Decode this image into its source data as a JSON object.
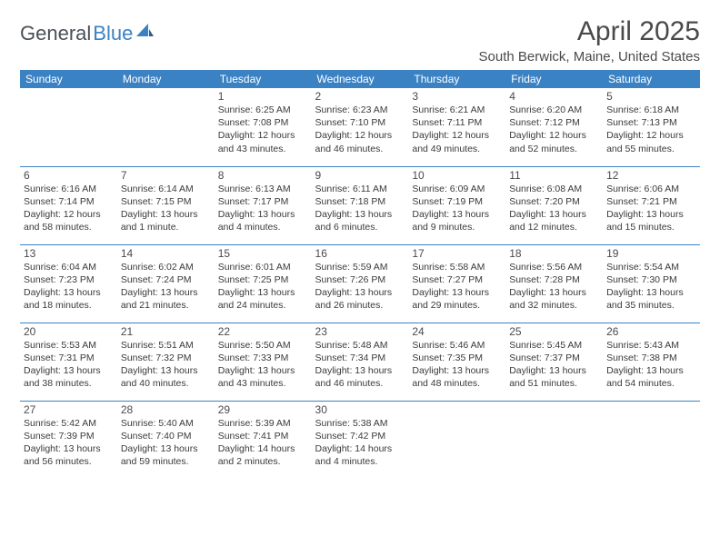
{
  "logo": {
    "text_general": "General",
    "text_blue": "Blue",
    "icon_color": "#3b82c4"
  },
  "header": {
    "title": "April 2025",
    "location": "South Berwick, Maine, United States"
  },
  "calendar": {
    "header_bg": "#3b82c4",
    "header_text_color": "#ffffff",
    "divider_color": "#3b82c4",
    "day_headers": [
      "Sunday",
      "Monday",
      "Tuesday",
      "Wednesday",
      "Thursday",
      "Friday",
      "Saturday"
    ],
    "weeks": [
      [
        {
          "num": "",
          "sunrise": "",
          "sunset": "",
          "daylight": ""
        },
        {
          "num": "",
          "sunrise": "",
          "sunset": "",
          "daylight": ""
        },
        {
          "num": "1",
          "sunrise": "Sunrise: 6:25 AM",
          "sunset": "Sunset: 7:08 PM",
          "daylight": "Daylight: 12 hours and 43 minutes."
        },
        {
          "num": "2",
          "sunrise": "Sunrise: 6:23 AM",
          "sunset": "Sunset: 7:10 PM",
          "daylight": "Daylight: 12 hours and 46 minutes."
        },
        {
          "num": "3",
          "sunrise": "Sunrise: 6:21 AM",
          "sunset": "Sunset: 7:11 PM",
          "daylight": "Daylight: 12 hours and 49 minutes."
        },
        {
          "num": "4",
          "sunrise": "Sunrise: 6:20 AM",
          "sunset": "Sunset: 7:12 PM",
          "daylight": "Daylight: 12 hours and 52 minutes."
        },
        {
          "num": "5",
          "sunrise": "Sunrise: 6:18 AM",
          "sunset": "Sunset: 7:13 PM",
          "daylight": "Daylight: 12 hours and 55 minutes."
        }
      ],
      [
        {
          "num": "6",
          "sunrise": "Sunrise: 6:16 AM",
          "sunset": "Sunset: 7:14 PM",
          "daylight": "Daylight: 12 hours and 58 minutes."
        },
        {
          "num": "7",
          "sunrise": "Sunrise: 6:14 AM",
          "sunset": "Sunset: 7:15 PM",
          "daylight": "Daylight: 13 hours and 1 minute."
        },
        {
          "num": "8",
          "sunrise": "Sunrise: 6:13 AM",
          "sunset": "Sunset: 7:17 PM",
          "daylight": "Daylight: 13 hours and 4 minutes."
        },
        {
          "num": "9",
          "sunrise": "Sunrise: 6:11 AM",
          "sunset": "Sunset: 7:18 PM",
          "daylight": "Daylight: 13 hours and 6 minutes."
        },
        {
          "num": "10",
          "sunrise": "Sunrise: 6:09 AM",
          "sunset": "Sunset: 7:19 PM",
          "daylight": "Daylight: 13 hours and 9 minutes."
        },
        {
          "num": "11",
          "sunrise": "Sunrise: 6:08 AM",
          "sunset": "Sunset: 7:20 PM",
          "daylight": "Daylight: 13 hours and 12 minutes."
        },
        {
          "num": "12",
          "sunrise": "Sunrise: 6:06 AM",
          "sunset": "Sunset: 7:21 PM",
          "daylight": "Daylight: 13 hours and 15 minutes."
        }
      ],
      [
        {
          "num": "13",
          "sunrise": "Sunrise: 6:04 AM",
          "sunset": "Sunset: 7:23 PM",
          "daylight": "Daylight: 13 hours and 18 minutes."
        },
        {
          "num": "14",
          "sunrise": "Sunrise: 6:02 AM",
          "sunset": "Sunset: 7:24 PM",
          "daylight": "Daylight: 13 hours and 21 minutes."
        },
        {
          "num": "15",
          "sunrise": "Sunrise: 6:01 AM",
          "sunset": "Sunset: 7:25 PM",
          "daylight": "Daylight: 13 hours and 24 minutes."
        },
        {
          "num": "16",
          "sunrise": "Sunrise: 5:59 AM",
          "sunset": "Sunset: 7:26 PM",
          "daylight": "Daylight: 13 hours and 26 minutes."
        },
        {
          "num": "17",
          "sunrise": "Sunrise: 5:58 AM",
          "sunset": "Sunset: 7:27 PM",
          "daylight": "Daylight: 13 hours and 29 minutes."
        },
        {
          "num": "18",
          "sunrise": "Sunrise: 5:56 AM",
          "sunset": "Sunset: 7:28 PM",
          "daylight": "Daylight: 13 hours and 32 minutes."
        },
        {
          "num": "19",
          "sunrise": "Sunrise: 5:54 AM",
          "sunset": "Sunset: 7:30 PM",
          "daylight": "Daylight: 13 hours and 35 minutes."
        }
      ],
      [
        {
          "num": "20",
          "sunrise": "Sunrise: 5:53 AM",
          "sunset": "Sunset: 7:31 PM",
          "daylight": "Daylight: 13 hours and 38 minutes."
        },
        {
          "num": "21",
          "sunrise": "Sunrise: 5:51 AM",
          "sunset": "Sunset: 7:32 PM",
          "daylight": "Daylight: 13 hours and 40 minutes."
        },
        {
          "num": "22",
          "sunrise": "Sunrise: 5:50 AM",
          "sunset": "Sunset: 7:33 PM",
          "daylight": "Daylight: 13 hours and 43 minutes."
        },
        {
          "num": "23",
          "sunrise": "Sunrise: 5:48 AM",
          "sunset": "Sunset: 7:34 PM",
          "daylight": "Daylight: 13 hours and 46 minutes."
        },
        {
          "num": "24",
          "sunrise": "Sunrise: 5:46 AM",
          "sunset": "Sunset: 7:35 PM",
          "daylight": "Daylight: 13 hours and 48 minutes."
        },
        {
          "num": "25",
          "sunrise": "Sunrise: 5:45 AM",
          "sunset": "Sunset: 7:37 PM",
          "daylight": "Daylight: 13 hours and 51 minutes."
        },
        {
          "num": "26",
          "sunrise": "Sunrise: 5:43 AM",
          "sunset": "Sunset: 7:38 PM",
          "daylight": "Daylight: 13 hours and 54 minutes."
        }
      ],
      [
        {
          "num": "27",
          "sunrise": "Sunrise: 5:42 AM",
          "sunset": "Sunset: 7:39 PM",
          "daylight": "Daylight: 13 hours and 56 minutes."
        },
        {
          "num": "28",
          "sunrise": "Sunrise: 5:40 AM",
          "sunset": "Sunset: 7:40 PM",
          "daylight": "Daylight: 13 hours and 59 minutes."
        },
        {
          "num": "29",
          "sunrise": "Sunrise: 5:39 AM",
          "sunset": "Sunset: 7:41 PM",
          "daylight": "Daylight: 14 hours and 2 minutes."
        },
        {
          "num": "30",
          "sunrise": "Sunrise: 5:38 AM",
          "sunset": "Sunset: 7:42 PM",
          "daylight": "Daylight: 14 hours and 4 minutes."
        },
        {
          "num": "",
          "sunrise": "",
          "sunset": "",
          "daylight": ""
        },
        {
          "num": "",
          "sunrise": "",
          "sunset": "",
          "daylight": ""
        },
        {
          "num": "",
          "sunrise": "",
          "sunset": "",
          "daylight": ""
        }
      ]
    ]
  }
}
